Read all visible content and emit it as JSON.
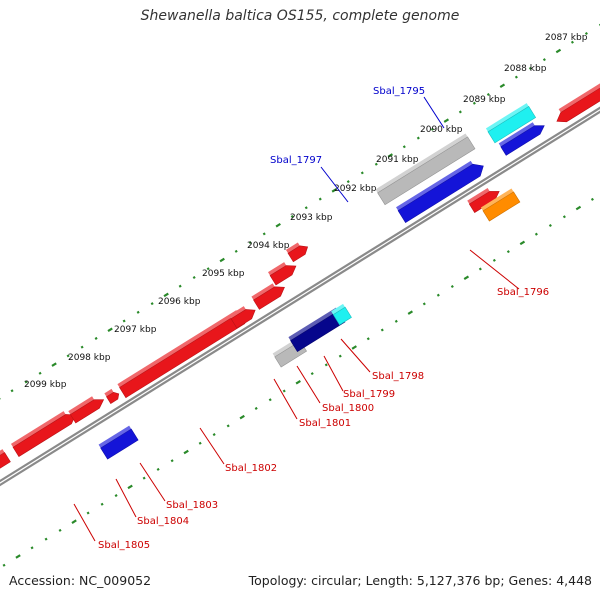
{
  "title": "Shewanella baltica OS155, complete genome",
  "footer": {
    "accession": "Accession: NC_009052",
    "summary": "Topology: circular; Length: 5,127,376 bp; Genes: 4,448"
  },
  "ticks": [
    "2087 kbp",
    "2088 kbp",
    "2089 kbp",
    "2090 kbp",
    "2091 kbp",
    "2092 kbp",
    "2093 kbp",
    "2094 kbp",
    "2095 kbp",
    "2096 kbp",
    "2097 kbp",
    "2098 kbp",
    "2099 kbp"
  ],
  "colors": {
    "red": "#e8161b",
    "blue": "#1414d8",
    "navy": "#06068c",
    "cyan": "#1ff0f0",
    "grey": "#b9b9b9",
    "orange": "#ff8c00",
    "backbone": "#8a8a8a",
    "dots": "#2a8a2a",
    "label_red": "#cc0000",
    "label_blue": "#0000cc"
  },
  "gene_labels": [
    {
      "text": "Sbal_1795",
      "color": "blue"
    },
    {
      "text": "Sbal_1797",
      "color": "blue"
    },
    {
      "text": "Sbal_1796",
      "color": "red"
    },
    {
      "text": "Sbal_1798",
      "color": "red"
    },
    {
      "text": "Sbal_1799",
      "color": "red"
    },
    {
      "text": "Sbal_1800",
      "color": "red"
    },
    {
      "text": "Sbal_1801",
      "color": "red"
    },
    {
      "text": "Sbal_1802",
      "color": "red"
    },
    {
      "text": "Sbal_1803",
      "color": "red"
    },
    {
      "text": "Sbal_1804",
      "color": "red"
    },
    {
      "text": "Sbal_1805",
      "color": "red"
    }
  ]
}
